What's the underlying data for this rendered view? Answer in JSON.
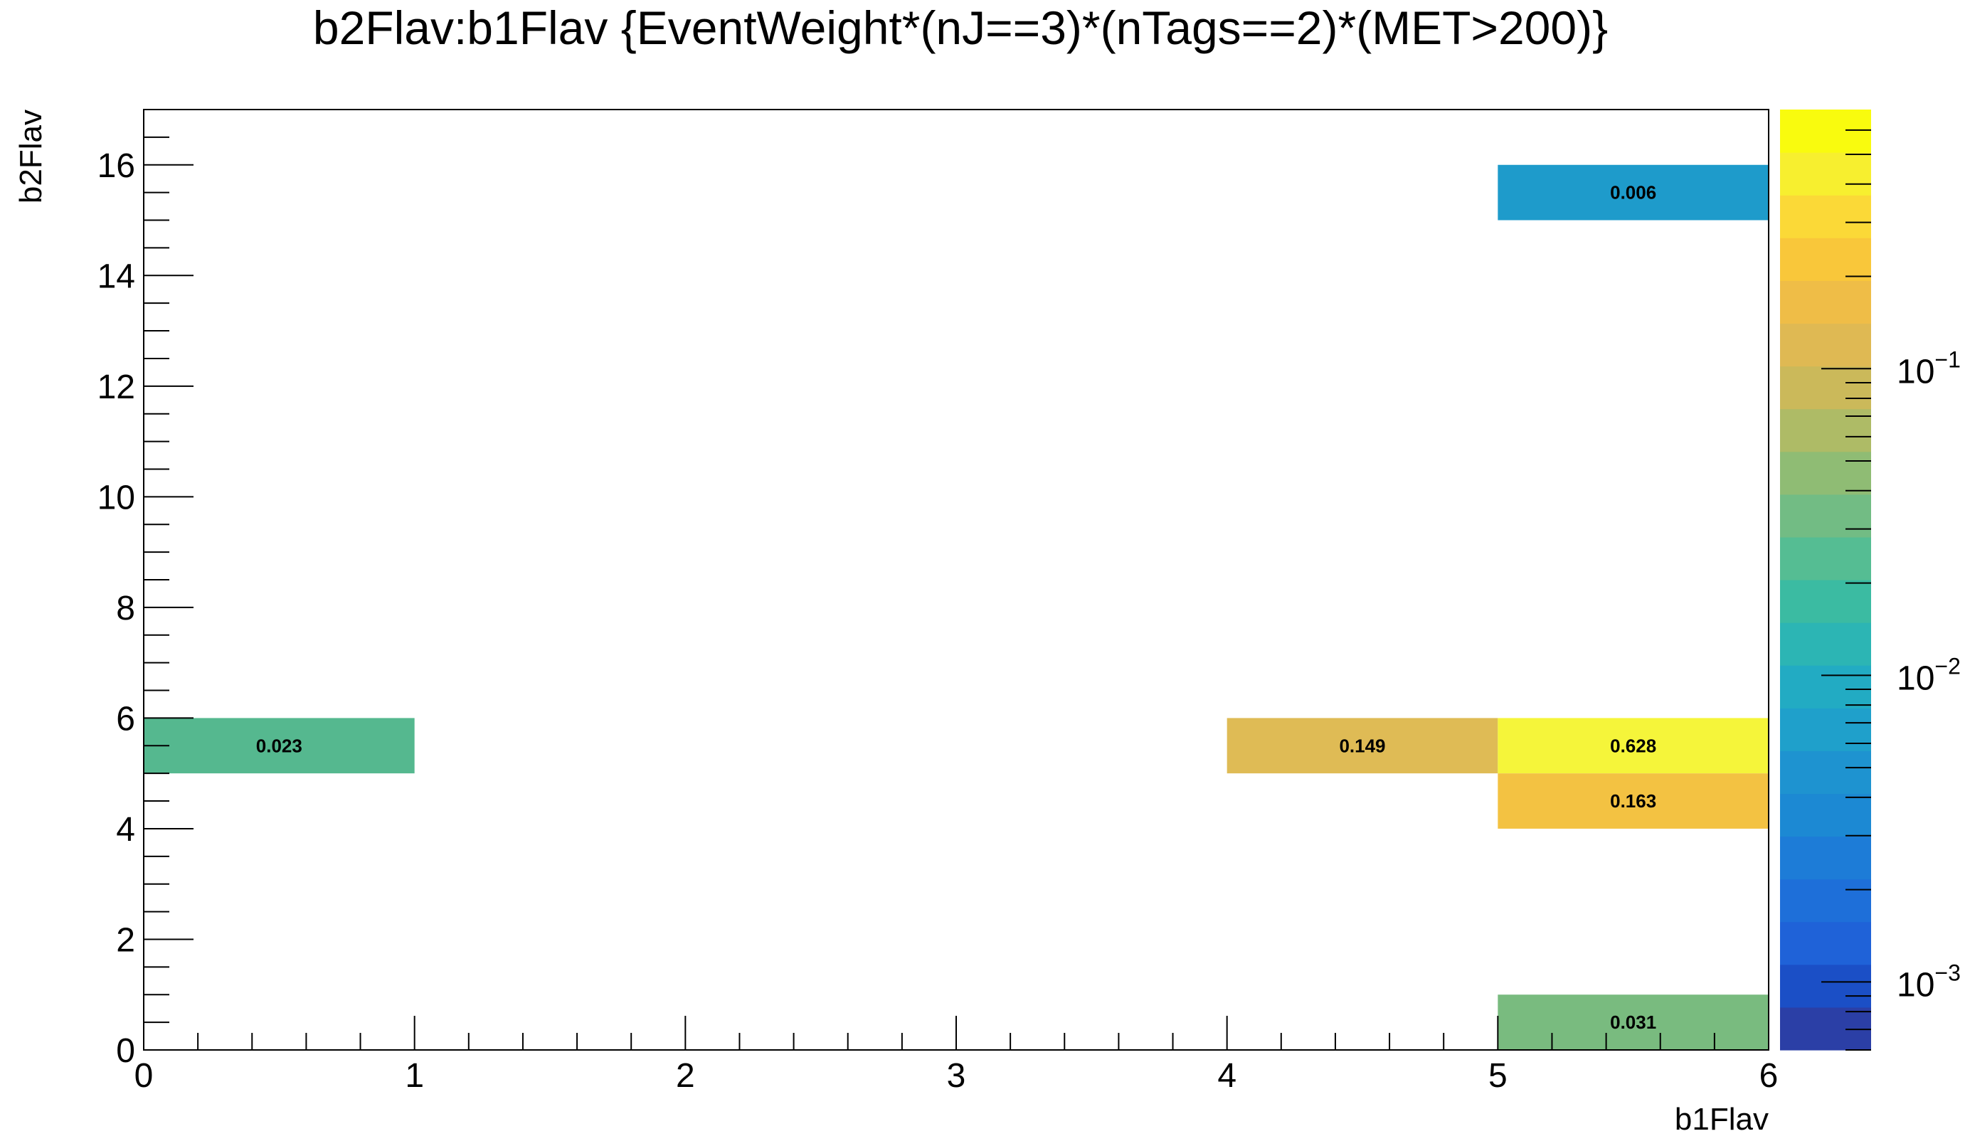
{
  "chart_data": {
    "type": "heatmap",
    "title": "b2Flav:b1Flav {EventWeight*(nJ==3)*(nTags==2)*(MET>200)}",
    "xlabel": "b1Flav",
    "ylabel": "b2Flav",
    "xlim": [
      0,
      6
    ],
    "ylim": [
      0,
      17
    ],
    "x_ticks": [
      "0",
      "1",
      "2",
      "3",
      "4",
      "5",
      "6"
    ],
    "y_ticks": [
      "0",
      "2",
      "4",
      "6",
      "8",
      "10",
      "12",
      "14",
      "16"
    ],
    "x_bin_width": 1,
    "y_bin_width": 1,
    "cells": [
      {
        "x": [
          0,
          1
        ],
        "y": [
          5,
          6
        ],
        "value": 0.023,
        "label": "0.023",
        "color": "#55b88f"
      },
      {
        "x": [
          4,
          5
        ],
        "y": [
          5,
          6
        ],
        "value": 0.149,
        "label": "0.149",
        "color": "#dfbb55"
      },
      {
        "x": [
          5,
          6
        ],
        "y": [
          5,
          6
        ],
        "value": 0.628,
        "label": "0.628",
        "color": "#f5f53a"
      },
      {
        "x": [
          5,
          6
        ],
        "y": [
          4,
          5
        ],
        "value": 0.163,
        "label": "0.163",
        "color": "#f3c242"
      },
      {
        "x": [
          5,
          6
        ],
        "y": [
          15,
          16
        ],
        "value": 0.006,
        "label": "0.006",
        "color": "#1e9bcb"
      },
      {
        "x": [
          5,
          6
        ],
        "y": [
          0,
          1
        ],
        "value": 0.031,
        "label": "0.031",
        "color": "#79bb7f"
      }
    ],
    "colorbar": {
      "scale": "log",
      "range": [
        0.0006,
        0.7
      ],
      "ticks": [
        {
          "value": 0.001,
          "base": "10",
          "exp": "−3"
        },
        {
          "value": 0.01,
          "base": "10",
          "exp": "−2"
        },
        {
          "value": 0.1,
          "base": "10",
          "exp": "−1"
        }
      ],
      "colors": [
        "#2b3fa6",
        "#1b4fc6",
        "#1f62d8",
        "#1e6fd9",
        "#1d7cd7",
        "#1c89d3",
        "#1e93d0",
        "#1fa0cb",
        "#22abc3",
        "#2cb5b4",
        "#3bbba2",
        "#55bd93",
        "#72bc84",
        "#8fbc74",
        "#aebb66",
        "#cbb95a",
        "#dfb953",
        "#efbd47",
        "#f9c73a",
        "#fbd937",
        "#f7ef2f",
        "#f9fb0e"
      ]
    },
    "grid": false,
    "legend": "colorbar-right"
  }
}
